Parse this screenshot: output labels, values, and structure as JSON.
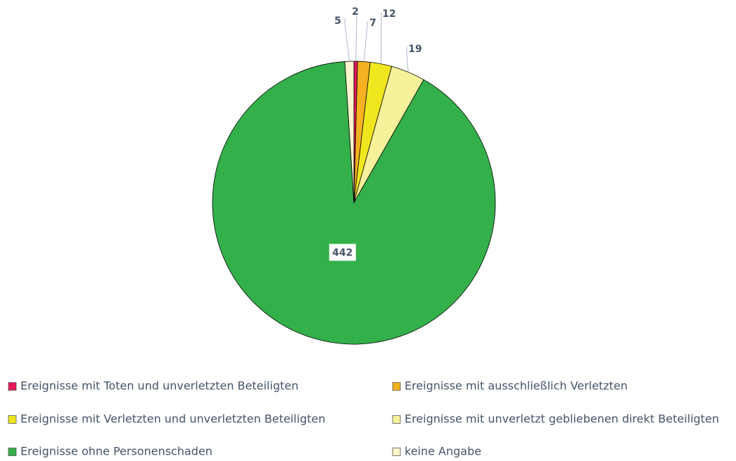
{
  "chart_data": {
    "type": "pie",
    "categories": [
      "Ereignisse mit Toten und unverletzten Beteiligten",
      "Ereignisse mit ausschließlich Verletzten",
      "Ereignisse mit Verletzten und unverletzten Beteiligten",
      "Ereignisse mit unverletzt gebliebenen direkt Beteiligten",
      "Ereignisse ohne Personenschaden",
      "keine Angabe"
    ],
    "values": [
      2,
      7,
      12,
      19,
      442,
      5
    ],
    "colors": [
      "#e8185a",
      "#f5b120",
      "#f0e61e",
      "#f6f19a",
      "#33b04a",
      "#fdf6cc"
    ],
    "legend": "bottom"
  }
}
